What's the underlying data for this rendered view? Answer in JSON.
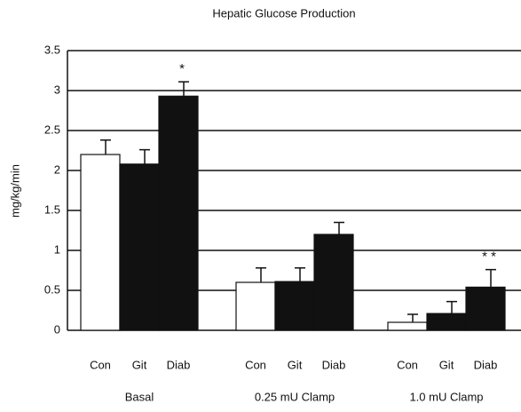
{
  "chart_data": {
    "type": "bar",
    "title": "Hepatic Glucose Production",
    "y_label": "mg/kg/min",
    "categories": [
      "Basal",
      "0.25 mU Clamp",
      "1.0 mU Clamp"
    ],
    "series": [
      {
        "name": "Con",
        "color": "#ffffff",
        "values": [
          2.2,
          0.6,
          0.1
        ],
        "errors": [
          0.18,
          0.18,
          0.1
        ]
      },
      {
        "name": "Git",
        "color": "#111111",
        "values": [
          2.08,
          0.61,
          0.21
        ],
        "errors": [
          0.18,
          0.17,
          0.15
        ]
      },
      {
        "name": "Diab",
        "color": "#111111",
        "values": [
          2.93,
          1.2,
          0.54
        ],
        "errors": [
          0.18,
          0.15,
          0.22
        ],
        "annotations": [
          "*",
          null,
          "* *"
        ]
      }
    ],
    "ylim": [
      0,
      3.5
    ],
    "yticks": [
      0,
      0.5,
      1,
      1.5,
      2,
      2.5,
      3,
      3.5
    ],
    "grid": true
  }
}
